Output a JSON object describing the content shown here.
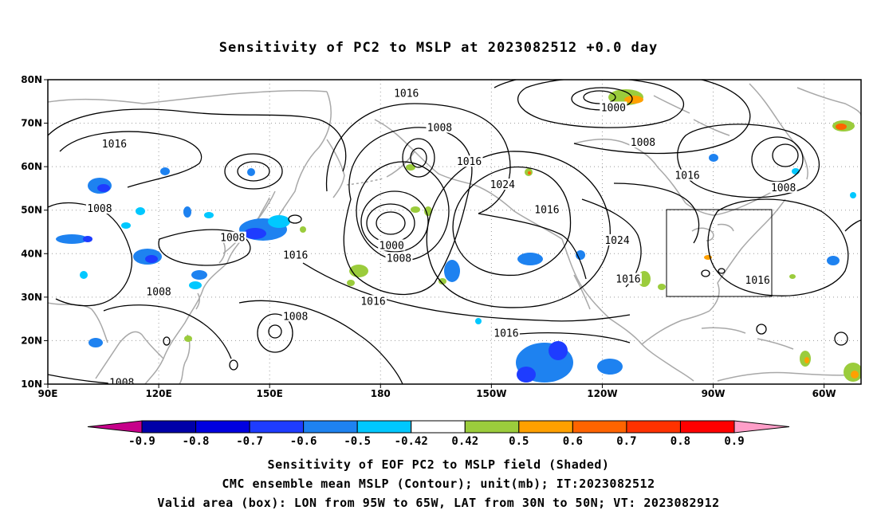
{
  "title": "Sensitivity of PC2 to MSLP at 2023082512 +0.0 day",
  "map": {
    "lat_labels": [
      "80N",
      "70N",
      "60N",
      "50N",
      "40N",
      "30N",
      "20N",
      "10N"
    ],
    "lon_labels": [
      "90E",
      "120E",
      "150E",
      "180",
      "150W",
      "120W",
      "90W",
      "60W"
    ],
    "lat_range": [
      10,
      80
    ],
    "lon_range": [
      "90E",
      "50W"
    ],
    "valid_box": {
      "lon": [
        "95W",
        "65W"
      ],
      "lat": [
        "30N",
        "50N"
      ]
    },
    "contour_labels": [
      {
        "text": "1016",
        "lon": 187,
        "lat": 76.8
      },
      {
        "text": "1008",
        "lon": 196,
        "lat": 68.9
      },
      {
        "text": "1000",
        "lon": 243,
        "lat": 73.5
      },
      {
        "text": "1008",
        "lon": 251,
        "lat": 65.5
      },
      {
        "text": "1016",
        "lon": 108,
        "lat": 65.2
      },
      {
        "text": "1016",
        "lon": 204,
        "lat": 61.1
      },
      {
        "text": "1024",
        "lon": 213,
        "lat": 55.8
      },
      {
        "text": "1016",
        "lon": 263,
        "lat": 57.9
      },
      {
        "text": "1008",
        "lon": 289,
        "lat": 55.1
      },
      {
        "text": "1008",
        "lon": 104,
        "lat": 50.3
      },
      {
        "text": "1016",
        "lon": 225,
        "lat": 50.0
      },
      {
        "text": "1008",
        "lon": 140,
        "lat": 43.6
      },
      {
        "text": "1024",
        "lon": 244,
        "lat": 43.0
      },
      {
        "text": "1000",
        "lon": 183,
        "lat": 41.8
      },
      {
        "text": "1008",
        "lon": 185,
        "lat": 38.9
      },
      {
        "text": "1016",
        "lon": 157,
        "lat": 39.6
      },
      {
        "text": "1016",
        "lon": 247,
        "lat": 34.1
      },
      {
        "text": "1016",
        "lon": 282,
        "lat": 33.8
      },
      {
        "text": "1008",
        "lon": 120,
        "lat": 31.2
      },
      {
        "text": "1016",
        "lon": 178,
        "lat": 29.0
      },
      {
        "text": "1008",
        "lon": 157,
        "lat": 25.5
      },
      {
        "text": "1016",
        "lon": 214,
        "lat": 21.6
      },
      {
        "text": "1008",
        "lon": 110,
        "lat": 10.3
      }
    ]
  },
  "colorbar": {
    "labels": [
      "-0.9",
      "-0.8",
      "-0.7",
      "-0.6",
      "-0.5",
      "-0.42",
      "0.42",
      "0.5",
      "0.6",
      "0.7",
      "0.8",
      "0.9"
    ],
    "colors": [
      "#c6008a",
      "#0000a8",
      "#0000e0",
      "#1e3cff",
      "#1e82f0",
      "#00c8ff",
      "#ffffff",
      "#9bcc3c",
      "#ffa000",
      "#ff6400",
      "#ff3200",
      "#ff0000",
      "#ff9ec8"
    ]
  },
  "caption": {
    "line1": "Sensitivity of EOF PC2 to MSLP field (Shaded)",
    "line2": "CMC ensemble mean MSLP (Contour); unit(mb); IT:2023082512",
    "line3": "Valid area (box): LON from 95W to 65W, LAT from 30N to 50N; VT: 2023082912"
  }
}
